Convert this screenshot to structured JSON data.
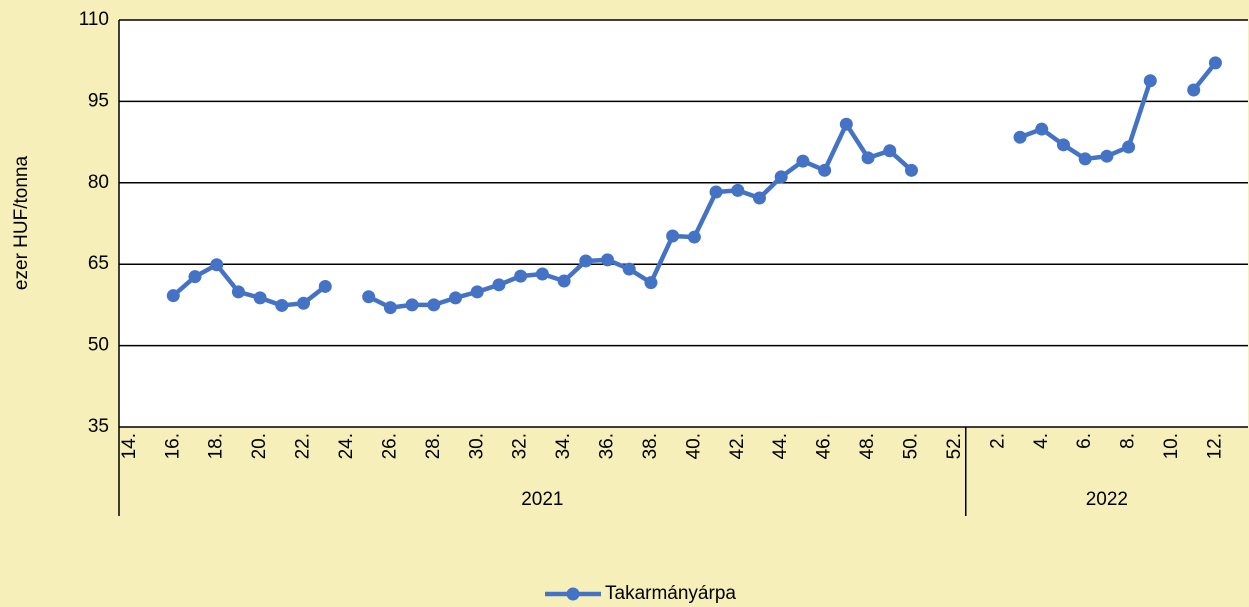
{
  "chart_data": {
    "type": "line",
    "y_label": "ezer HUF/tonna",
    "category_groups": [
      {
        "name": "2021",
        "categories": [
          "14.",
          null,
          "16.",
          null,
          "18.",
          null,
          "20.",
          null,
          "22.",
          null,
          "24.",
          null,
          "26.",
          null,
          "28.",
          null,
          "30.",
          null,
          "32.",
          null,
          "34.",
          null,
          "36.",
          null,
          "38.",
          null,
          "40.",
          null,
          "42.",
          null,
          "44.",
          null,
          "46.",
          null,
          "48.",
          null,
          "50.",
          null,
          "52."
        ]
      },
      {
        "name": "2022",
        "categories": [
          null,
          "2.",
          null,
          "4.",
          null,
          "6.",
          null,
          "8.",
          null,
          "10.",
          null,
          "12.",
          null
        ]
      }
    ],
    "series": [
      {
        "name": "Takarmányárpa",
        "color": "#4472c4",
        "values": [
          null,
          null,
          59.2,
          62.7,
          64.9,
          59.9,
          58.8,
          57.4,
          57.8,
          60.9,
          null,
          59.0,
          57.0,
          57.5,
          57.5,
          58.8,
          59.9,
          61.2,
          62.8,
          63.2,
          61.9,
          65.6,
          65.8,
          64.1,
          61.6,
          70.2,
          70.0,
          78.3,
          78.6,
          77.2,
          81.1,
          84.0,
          82.3,
          90.8,
          84.6,
          85.9,
          82.3,
          null,
          null,
          null,
          null,
          88.4,
          89.9,
          87.0,
          84.4,
          84.9,
          86.6,
          98.8,
          null,
          97.1,
          102.1,
          null
        ]
      }
    ],
    "ylim": [
      35,
      110
    ],
    "yticks": [
      35,
      50,
      65,
      80,
      95,
      110
    ],
    "grid": true,
    "legend": "bottom"
  }
}
